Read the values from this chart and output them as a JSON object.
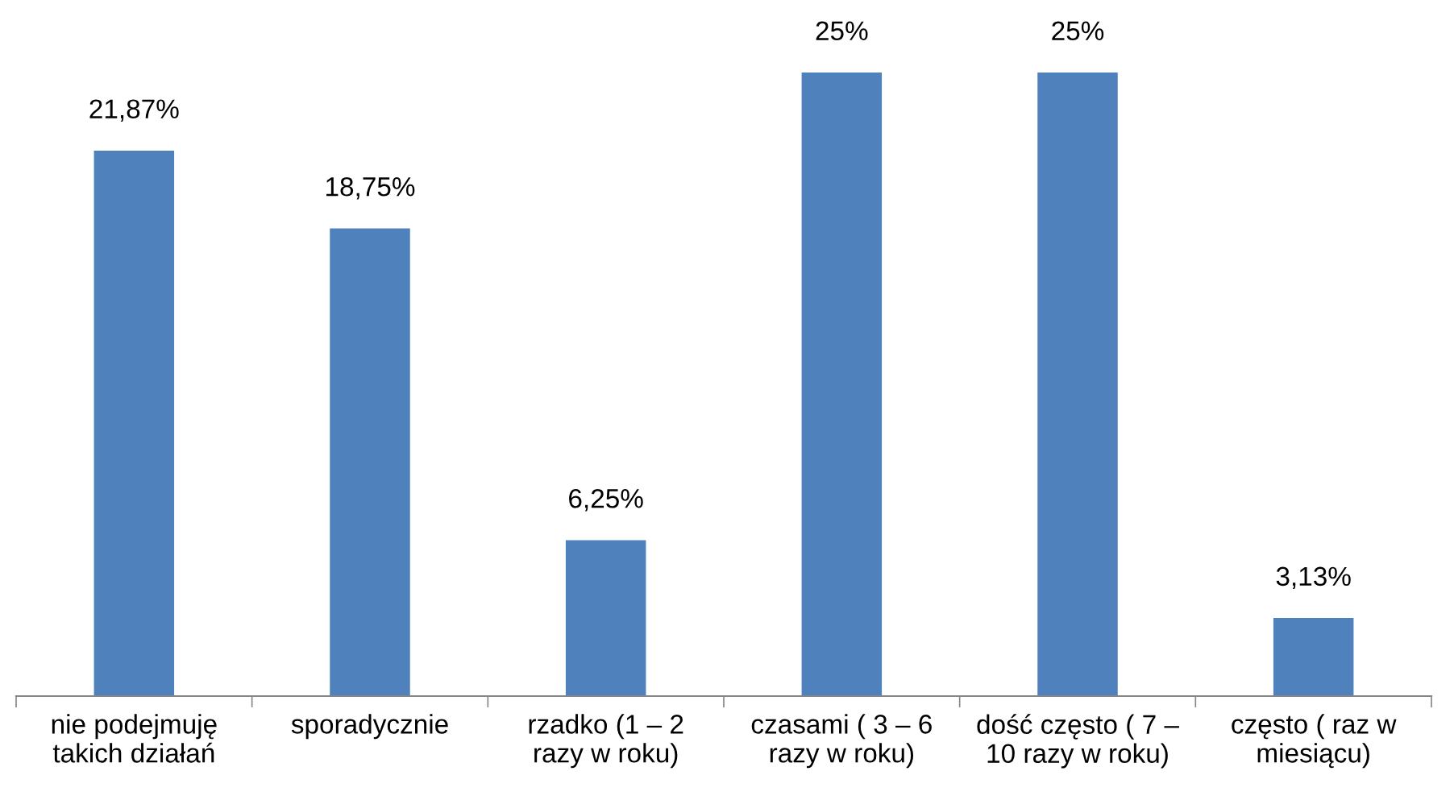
{
  "chart_data": {
    "type": "bar",
    "categories": [
      "nie podejmuję\ntakich działań",
      "sporadycznie",
      "rzadko (1 – 2\nrazy w roku)",
      "czasami ( 3 – 6\nrazy w roku)",
      "dość często ( 7 –\n10 razy w roku)",
      "często ( raz w\nmiesiącu)"
    ],
    "values": [
      21.87,
      18.75,
      6.25,
      25,
      25,
      3.13
    ],
    "value_labels": [
      "21,87%",
      "18,75%",
      "6,25%",
      "25%",
      "25%",
      "3,13%"
    ],
    "color": "#4f81bd",
    "grid": false,
    "legend": false
  }
}
